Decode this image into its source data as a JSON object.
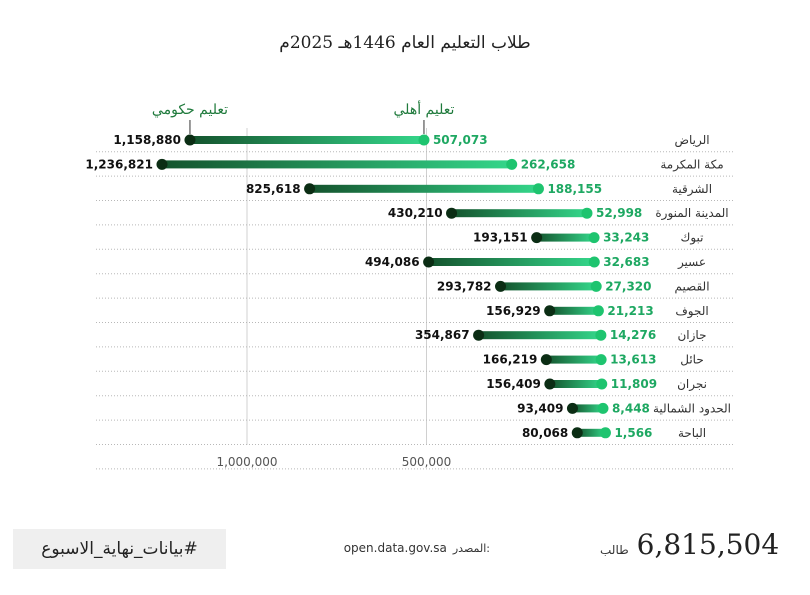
{
  "chart_data": {
    "type": "dumbbell",
    "title": "طلاب التعليم العام  1446هـ 2025م",
    "categories": [
      "الرياض",
      "مكة المكرمة",
      "الشرقية",
      "المدينة المنورة",
      "تبوك",
      "عسير",
      "القصيم",
      "الجوف",
      "جازان",
      "حائل",
      "نجران",
      "الحدود الشمالية",
      "الباحة"
    ],
    "series": [
      {
        "name": "تعليم حكومي",
        "color": "#0b2d14",
        "values": [
          1158880,
          1236821,
          825618,
          430210,
          193151,
          494086,
          293782,
          156929,
          354867,
          166219,
          156409,
          93409,
          80068
        ]
      },
      {
        "name": "تعليم أهلي",
        "color": "#1ec46f",
        "values": [
          507073,
          262658,
          188155,
          52998,
          33243,
          32683,
          27320,
          21213,
          14276,
          13613,
          11809,
          8448,
          1566
        ]
      }
    ],
    "value_labels": {
      "government": [
        "1,158,880",
        "1,236,821",
        "825,618",
        "430,210",
        "193,151",
        "494,086",
        "293,782",
        "156,929",
        "354,867",
        "166,219",
        "156,409",
        "93,409",
        "80,068"
      ],
      "private": [
        "507,073",
        "262,658",
        "188,155",
        "52,998",
        "33,243",
        "32,683",
        "27,320",
        "21,213",
        "14,276",
        "13,613",
        "11,809",
        "8,448",
        "1,566"
      ]
    },
    "x_ticks": [
      {
        "value": 1000000,
        "label": "1,000,000"
      },
      {
        "value": 500000,
        "label": "500,000"
      }
    ],
    "xlim": [
      0,
      1300000
    ],
    "x_reversed": true,
    "legend_placement": "top",
    "grid": "dotted-horizontal"
  },
  "footer": {
    "hashtag": "#بيانات_نهاية_الاسبوع",
    "source_label": "المصدر:",
    "source_url": "open.data.gov.sa",
    "total_number": "6,815,504",
    "total_unit": "طالب"
  }
}
